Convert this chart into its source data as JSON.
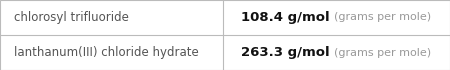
{
  "rows": [
    {
      "name": "chlorosyl trifluoride",
      "value": "108.4 g/mol",
      "unit": "(grams per mole)"
    },
    {
      "name": "lanthanum(III) chloride hydrate",
      "value": "263.3 g/mol",
      "unit": "(grams per mole)"
    }
  ],
  "col_split": 0.495,
  "background": "#ffffff",
  "border_color": "#bbbbbb",
  "text_color_name": "#555555",
  "text_color_value": "#111111",
  "text_color_unit": "#999999",
  "font_size_name": 8.5,
  "font_size_value": 9.5,
  "font_size_unit": 8.0
}
